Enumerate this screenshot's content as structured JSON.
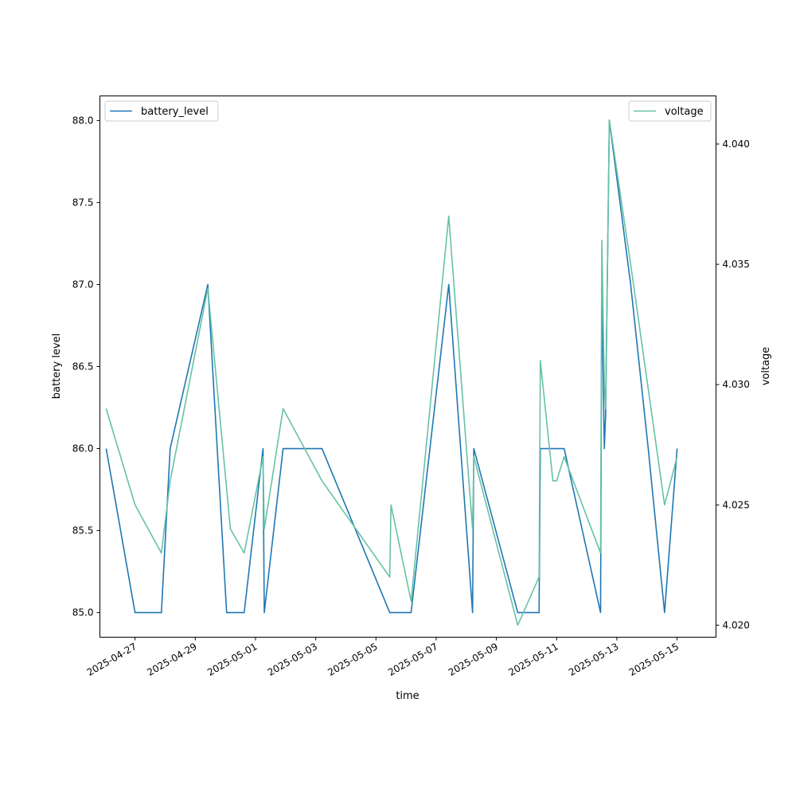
{
  "chart_data": {
    "type": "line",
    "title": "",
    "xlabel": "time",
    "ylabel_left": "battery level",
    "ylabel_right": "voltage",
    "x_type": "datetime",
    "xlim": [
      "2025-04-25T20:00",
      "2025-05-16T07:00"
    ],
    "ylim_left": [
      84.85,
      88.15
    ],
    "ylim_right": [
      4.0195,
      4.042
    ],
    "x_tick_labels": [
      "2025-04-27",
      "2025-04-29",
      "2025-05-01",
      "2025-05-03",
      "2025-05-05",
      "2025-05-07",
      "2025-05-09",
      "2025-05-11",
      "2025-05-13",
      "2025-05-15"
    ],
    "y_left_ticks": [
      85.0,
      85.5,
      86.0,
      86.5,
      87.0,
      87.5,
      88.0
    ],
    "y_left_tick_labels": [
      "85.0",
      "85.5",
      "86.0",
      "86.5",
      "87.0",
      "87.5",
      "88.0"
    ],
    "y_right_ticks": [
      4.02,
      4.025,
      4.03,
      4.035,
      4.04
    ],
    "y_right_tick_labels": [
      "4.020",
      "4.025",
      "4.030",
      "4.035",
      "4.040"
    ],
    "grid": false,
    "series": [
      {
        "name": "battery_level",
        "axis": "left",
        "color": "#1f77b4",
        "legend_position": "upper-left",
        "points": [
          [
            "2025-04-26T01:00",
            86.0
          ],
          [
            "2025-04-27T00:00",
            85.0
          ],
          [
            "2025-04-27T21:00",
            85.0
          ],
          [
            "2025-04-28T04:00",
            86.0
          ],
          [
            "2025-04-29T10:00",
            87.0
          ],
          [
            "2025-04-30T01:00",
            85.0
          ],
          [
            "2025-04-30T15:00",
            85.0
          ],
          [
            "2025-05-01T06:00",
            86.0
          ],
          [
            "2025-05-01T07:00",
            85.0
          ],
          [
            "2025-05-01T22:00",
            86.0
          ],
          [
            "2025-05-03T05:00",
            86.0
          ],
          [
            "2025-05-05T11:00",
            85.0
          ],
          [
            "2025-05-06T04:00",
            85.0
          ],
          [
            "2025-05-07T10:00",
            87.0
          ],
          [
            "2025-05-08T05:00",
            85.0
          ],
          [
            "2025-05-08T06:00",
            86.0
          ],
          [
            "2025-05-09T17:00",
            85.0
          ],
          [
            "2025-05-10T10:00",
            85.0
          ],
          [
            "2025-05-10T11:00",
            86.0
          ],
          [
            "2025-05-11T06:00",
            86.0
          ],
          [
            "2025-05-12T11:00",
            85.0
          ],
          [
            "2025-05-12T12:00",
            87.0
          ],
          [
            "2025-05-12T14:00",
            86.0
          ],
          [
            "2025-05-12T15:00",
            86.2
          ],
          [
            "2025-05-12T18:00",
            88.0
          ],
          [
            "2025-05-13T11:00",
            87.0
          ],
          [
            "2025-05-14T01:00",
            86.0
          ],
          [
            "2025-05-14T14:00",
            85.0
          ],
          [
            "2025-05-15T00:00",
            86.0
          ]
        ]
      },
      {
        "name": "voltage",
        "axis": "right",
        "color": "#66c2a5",
        "legend_position": "upper-right",
        "points": [
          [
            "2025-04-26T01:00",
            4.029
          ],
          [
            "2025-04-27T00:00",
            4.025
          ],
          [
            "2025-04-27T21:00",
            4.023
          ],
          [
            "2025-04-28T04:00",
            4.026
          ],
          [
            "2025-04-29T10:00",
            4.034
          ],
          [
            "2025-04-30T04:00",
            4.024
          ],
          [
            "2025-04-30T15:00",
            4.023
          ],
          [
            "2025-05-01T06:00",
            4.027
          ],
          [
            "2025-05-01T07:00",
            4.024
          ],
          [
            "2025-05-01T22:00",
            4.029
          ],
          [
            "2025-05-03T05:00",
            4.026
          ],
          [
            "2025-05-05T11:00",
            4.022
          ],
          [
            "2025-05-05T12:00",
            4.025
          ],
          [
            "2025-05-06T04:00",
            4.021
          ],
          [
            "2025-05-07T10:00",
            4.037
          ],
          [
            "2025-05-08T05:00",
            4.024
          ],
          [
            "2025-05-08T06:00",
            4.027
          ],
          [
            "2025-05-09T17:00",
            4.02
          ],
          [
            "2025-05-10T10:00",
            4.022
          ],
          [
            "2025-05-10T11:00",
            4.031
          ],
          [
            "2025-05-10T21:00",
            4.026
          ],
          [
            "2025-05-11T00:00",
            4.026
          ],
          [
            "2025-05-11T06:00",
            4.027
          ],
          [
            "2025-05-12T11:00",
            4.023
          ],
          [
            "2025-05-12T12:00",
            4.036
          ],
          [
            "2025-05-12T14:00",
            4.03
          ],
          [
            "2025-05-12T15:00",
            4.029
          ],
          [
            "2025-05-12T18:00",
            4.041
          ],
          [
            "2025-05-13T11:00",
            4.035
          ],
          [
            "2025-05-14T14:00",
            4.025
          ],
          [
            "2025-05-15T00:00",
            4.027
          ]
        ]
      }
    ]
  }
}
